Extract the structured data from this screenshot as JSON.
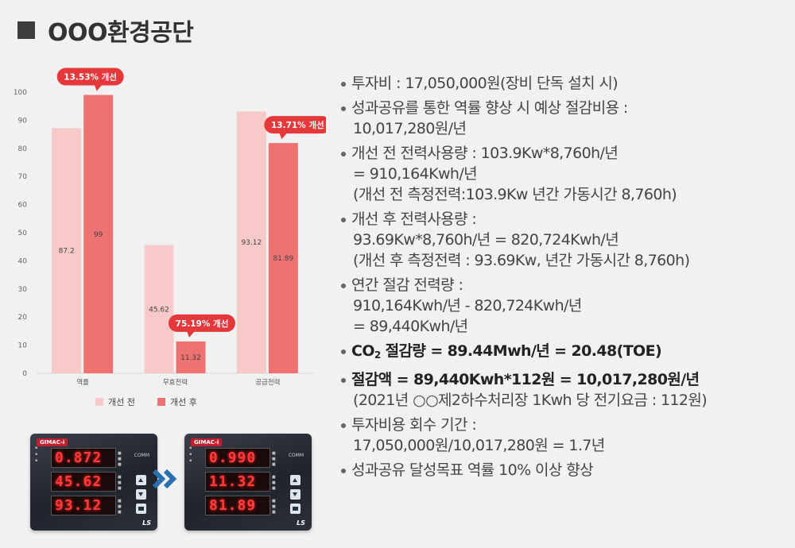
{
  "header": {
    "title": "OOO환경공단"
  },
  "chart_data": {
    "type": "bar",
    "categories": [
      "역률",
      "무효전력",
      "공급전력"
    ],
    "series": [
      {
        "name": "개선 전",
        "values": [
          87.2,
          45.62,
          93.12
        ],
        "color": "#f7c9c9"
      },
      {
        "name": "개선 후",
        "values": [
          99,
          11.32,
          81.89
        ],
        "color": "#ef7272"
      }
    ],
    "ylim": [
      0,
      100
    ],
    "yticks": [
      0,
      10,
      20,
      30,
      40,
      50,
      60,
      70,
      80,
      90,
      100
    ],
    "value_labels": {
      "before": [
        "87.2",
        "45.62",
        "93.12"
      ],
      "after": [
        "99",
        "11.32",
        "81.89"
      ]
    },
    "callouts": [
      {
        "category_index": 0,
        "text": "13.53% 개선"
      },
      {
        "category_index": 1,
        "text": "75.19% 개선"
      },
      {
        "category_index": 2,
        "text": "13.71% 개선"
      }
    ],
    "legend": {
      "placement": "bottom"
    },
    "grid": false,
    "callout_color": "#e5383b"
  },
  "meters": {
    "before": {
      "brand": "GIMAC-i",
      "comm": "COMM",
      "readings": [
        "0.872",
        "45.62",
        "93.12"
      ]
    },
    "after": {
      "brand": "GIMAC-i",
      "comm": "COMM",
      "readings": [
        "0.990",
        "11.32",
        "81.89"
      ]
    },
    "logo": "LS"
  },
  "info": {
    "i1": {
      "l1": "투자비 : 17,050,000원(장비 단독 설치 시)"
    },
    "i2": {
      "l1": "성과공유를 통한 역률 향상 시 예상 절감비용 :",
      "l2": "10,017,280원/년"
    },
    "i3": {
      "l1": "개선 전 전력사용량 : 103.9Kw*8,760h/년",
      "l2": "= 910,164Kwh/년",
      "l3": "(개선 전 측정전력:103.9Kw 년간 가동시간 8,760h)"
    },
    "i4": {
      "l1": "개선 후 전력사용량 :",
      "l2": "93.69Kw*8,760h/년 = 820,724Kwh/년",
      "l3": "(개선 후 측정전력 : 93.69Kw, 년간 가동시간 8,760h)"
    },
    "i5": {
      "l1": "연간 절감 전력량 :",
      "l2": "910,164Kwh/년 - 820,724Kwh/년",
      "l3": "= 89,440Kwh/년"
    },
    "i6": {
      "co": "CO",
      "sub": "2",
      "rest": " 절감량 = 89.44Mwh/년 = 20.48(TOE)"
    },
    "i7": {
      "l1": "절감액 = 89,440Kwh*112원  = 10,017,280원/년",
      "l2": "(2021년 ○○제2하수처리장 1Kwh 당 전기요금 : 112원)"
    },
    "i8": {
      "l1": "투자비용 회수 기간 :",
      "l2": "17,050,000원/10,017,280원 = 1.7년"
    },
    "i9": {
      "l1": "성과공유 달성목표 역률 10% 이상 향상"
    }
  }
}
